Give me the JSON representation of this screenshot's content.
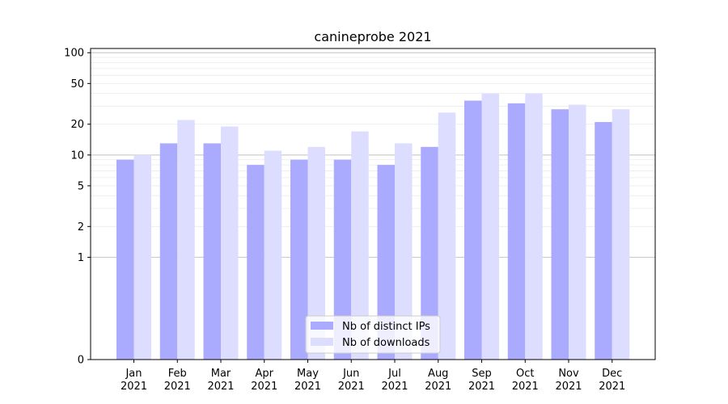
{
  "chart_data": {
    "type": "bar",
    "title": "canineprobe 2021",
    "xlabel": "",
    "ylabel": "",
    "y_scale": "symlog",
    "ylim": [
      0,
      110
    ],
    "y_ticks": [
      0,
      1,
      2,
      5,
      10,
      20,
      50,
      100
    ],
    "grid": true,
    "legend_position": "bottom-center",
    "categories": [
      "Jan\n2021",
      "Feb\n2021",
      "Mar\n2021",
      "Apr\n2021",
      "May\n2021",
      "Jun\n2021",
      "Jul\n2021",
      "Aug\n2021",
      "Sep\n2021",
      "Oct\n2021",
      "Nov\n2021",
      "Dec\n2021"
    ],
    "series": [
      {
        "name": "Nb of distinct IPs",
        "color": "#aaaaff",
        "values": [
          9,
          13,
          13,
          8,
          9,
          9,
          8,
          12,
          34,
          32,
          28,
          21
        ]
      },
      {
        "name": "Nb of downloads",
        "color": "#ddddff",
        "values": [
          10,
          22,
          19,
          11,
          12,
          17,
          13,
          26,
          40,
          40,
          31,
          28
        ]
      }
    ]
  }
}
